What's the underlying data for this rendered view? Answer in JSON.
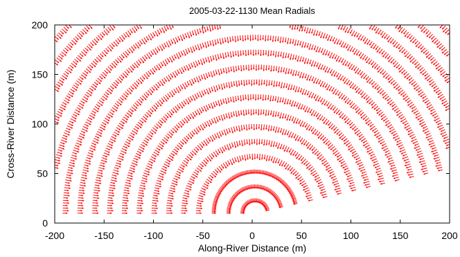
{
  "chart_data": {
    "type": "vector-field",
    "title": "2005-03-22-1130 Mean Radials",
    "xlabel": "Along-River Distance (m)",
    "ylabel": "Cross-River Distance (m)",
    "xlim": [
      -200,
      200
    ],
    "ylim": [
      0,
      200
    ],
    "xticks": [
      -200,
      -150,
      -100,
      -50,
      0,
      50,
      100,
      150,
      200
    ],
    "yticks": [
      0,
      50,
      100,
      150,
      200
    ],
    "grid": false,
    "legend": "none",
    "series": [
      {
        "color": "#ff0000",
        "origin": [
          3,
          10
        ],
        "ranges_m": [
          15,
          29,
          44,
          60,
          75,
          90,
          105,
          120,
          135,
          150,
          165,
          180,
          195,
          210,
          225,
          240,
          255,
          270,
          285
        ],
        "bearing_deg_from_plus_x": [
          13,
          180
        ],
        "vector_direction": "radial, pointing toward origin"
      }
    ]
  }
}
